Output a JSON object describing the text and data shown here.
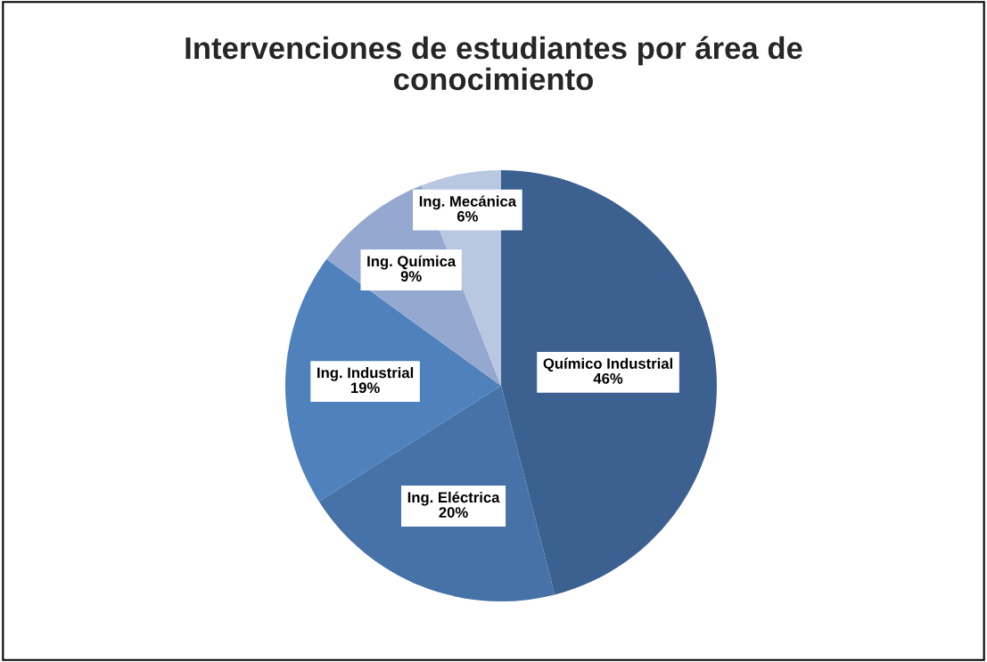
{
  "chart_data": {
    "type": "pie",
    "title": "Intervenciones de estudiantes por área de\nconocimiento",
    "categories": [
      "Químico Industrial",
      "Ing. Eléctrica",
      "Ing. Industrial",
      "Ing. Química",
      "Ing. Mecánica"
    ],
    "values": [
      46,
      20,
      19,
      9,
      6
    ],
    "value_labels": [
      "46%",
      "20%",
      "19%",
      "9%",
      "6%"
    ],
    "colors": [
      "#3c6190",
      "#4672a8",
      "#4f81bd",
      "#94a8d0",
      "#b9c7e1"
    ],
    "legend": false
  }
}
